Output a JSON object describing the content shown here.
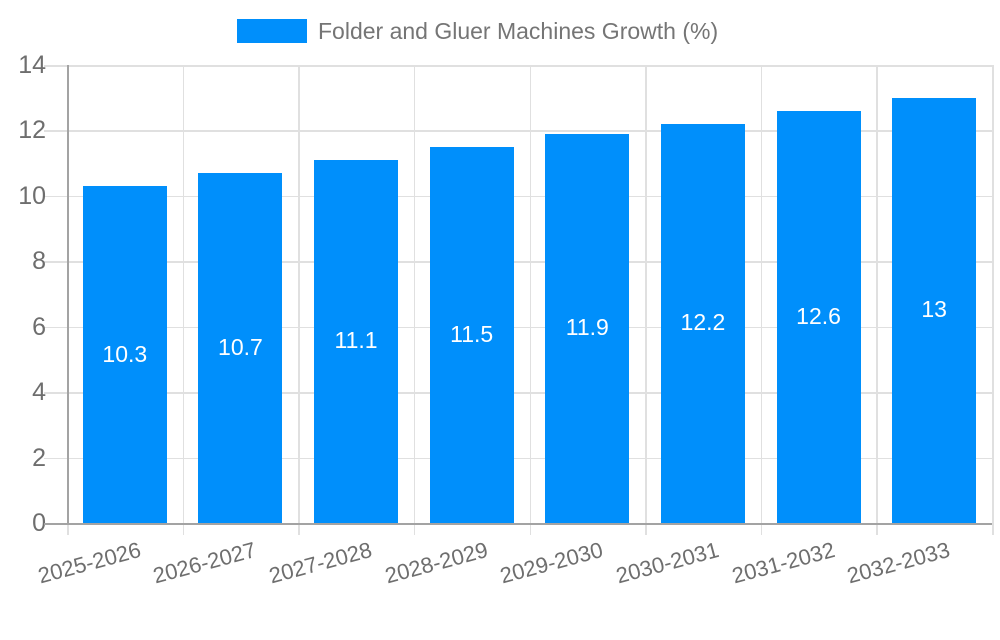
{
  "legend": {
    "label": "Folder and Gluer Machines Growth (%)",
    "swatch_color": "#008FFB"
  },
  "chart_data": {
    "type": "bar",
    "title": "Folder and Gluer Machines Growth (%)",
    "categories": [
      "2025-2026",
      "2026-2027",
      "2027-2028",
      "2028-2029",
      "2029-2030",
      "2030-2031",
      "2031-2032",
      "2032-2033"
    ],
    "values": [
      10.3,
      10.7,
      11.1,
      11.5,
      11.9,
      12.2,
      12.6,
      13
    ],
    "bar_labels": [
      "10.3",
      "10.7",
      "11.1",
      "11.5",
      "11.9",
      "12.2",
      "12.6",
      "13"
    ],
    "xlabel": "",
    "ylabel": "",
    "ylim": [
      0,
      14
    ],
    "yticks": [
      0,
      2,
      4,
      6,
      8,
      10,
      12,
      14
    ],
    "grid": true,
    "legend_position": "top",
    "bar_color": "#008FFB",
    "value_label_color": "#ffffff",
    "grid_color": "#e0e0e0",
    "axis_color": "#a3a3a3",
    "tick_label_color": "#6e6e6e"
  }
}
